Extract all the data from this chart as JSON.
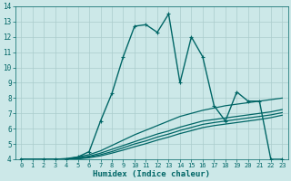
{
  "xlabel": "Humidex (Indice chaleur)",
  "xlim": [
    -0.5,
    23.5
  ],
  "ylim": [
    4,
    14
  ],
  "xticks": [
    0,
    1,
    2,
    3,
    4,
    5,
    6,
    7,
    8,
    9,
    10,
    11,
    12,
    13,
    14,
    15,
    16,
    17,
    18,
    19,
    20,
    21,
    22,
    23
  ],
  "yticks": [
    4,
    5,
    6,
    7,
    8,
    9,
    10,
    11,
    12,
    13,
    14
  ],
  "bg_color": "#cce8e8",
  "plot_bg": "#cce8e8",
  "line_color": "#006666",
  "grid_color": "#aacccc",
  "lines": [
    {
      "x": [
        0,
        1,
        2,
        3,
        4,
        5,
        6,
        7,
        8,
        9,
        10,
        11,
        12,
        13,
        14,
        15,
        16,
        17,
        18,
        19,
        20,
        21,
        22,
        23
      ],
      "y": [
        4.0,
        3.9,
        4.0,
        4.0,
        4.0,
        4.15,
        4.5,
        6.5,
        8.3,
        10.7,
        12.7,
        12.8,
        12.3,
        13.5,
        9.0,
        12.0,
        10.7,
        7.5,
        6.5,
        8.4,
        7.8,
        7.8,
        4.0,
        4.0
      ],
      "marker": true,
      "lw": 1.0
    },
    {
      "x": [
        0,
        1,
        2,
        3,
        4,
        5,
        6,
        7,
        8,
        9,
        10,
        11,
        12,
        13,
        14,
        15,
        16,
        17,
        18,
        19,
        20,
        21,
        22,
        23
      ],
      "y": [
        4.0,
        4.0,
        4.0,
        4.0,
        4.05,
        4.15,
        4.3,
        4.55,
        4.9,
        5.25,
        5.6,
        5.9,
        6.2,
        6.5,
        6.8,
        7.0,
        7.2,
        7.35,
        7.5,
        7.6,
        7.7,
        7.8,
        7.9,
        8.0
      ],
      "marker": false,
      "lw": 0.9
    },
    {
      "x": [
        0,
        1,
        2,
        3,
        4,
        5,
        6,
        7,
        8,
        9,
        10,
        11,
        12,
        13,
        14,
        15,
        16,
        17,
        18,
        19,
        20,
        21,
        22,
        23
      ],
      "y": [
        4.0,
        4.0,
        4.0,
        4.0,
        4.0,
        4.1,
        4.2,
        4.4,
        4.65,
        4.9,
        5.15,
        5.4,
        5.65,
        5.85,
        6.1,
        6.3,
        6.5,
        6.6,
        6.7,
        6.8,
        6.9,
        7.0,
        7.1,
        7.25
      ],
      "marker": false,
      "lw": 0.9
    },
    {
      "x": [
        0,
        1,
        2,
        3,
        4,
        5,
        6,
        7,
        8,
        9,
        10,
        11,
        12,
        13,
        14,
        15,
        16,
        17,
        18,
        19,
        20,
        21,
        22,
        23
      ],
      "y": [
        4.0,
        4.0,
        4.0,
        4.0,
        4.0,
        4.05,
        4.15,
        4.3,
        4.5,
        4.75,
        5.0,
        5.2,
        5.45,
        5.65,
        5.88,
        6.08,
        6.28,
        6.4,
        6.5,
        6.6,
        6.7,
        6.8,
        6.9,
        7.05
      ],
      "marker": false,
      "lw": 0.9
    },
    {
      "x": [
        0,
        1,
        2,
        3,
        4,
        5,
        6,
        7,
        8,
        9,
        10,
        11,
        12,
        13,
        14,
        15,
        16,
        17,
        18,
        19,
        20,
        21,
        22,
        23
      ],
      "y": [
        4.0,
        4.0,
        4.0,
        4.0,
        4.0,
        4.02,
        4.1,
        4.22,
        4.4,
        4.6,
        4.82,
        5.02,
        5.25,
        5.45,
        5.68,
        5.87,
        6.07,
        6.2,
        6.3,
        6.4,
        6.5,
        6.6,
        6.72,
        6.88
      ],
      "marker": false,
      "lw": 0.9
    }
  ]
}
